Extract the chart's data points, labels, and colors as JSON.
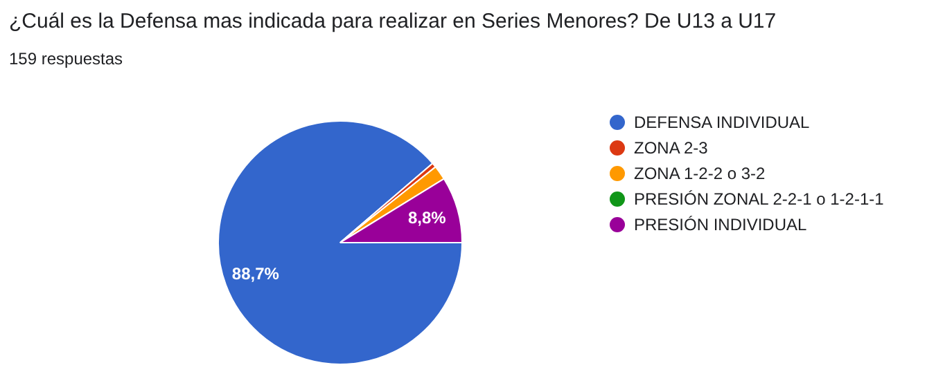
{
  "chart_data": {
    "type": "pie",
    "title": "¿Cuál es la Defensa mas indicada para realizar en Series Menores? De U13 a U17",
    "subtitle": "159 respuestas",
    "categories": [
      "DEFENSA INDIVIDUAL",
      "ZONA 2-3",
      "ZONA 1-2-2 o 3-2",
      "PRESIÓN ZONAL 2-2-1 o 1-2-1-1",
      "PRESIÓN INDIVIDUAL"
    ],
    "values": [
      88.7,
      0.6,
      1.9,
      0,
      8.8
    ],
    "colors": [
      "#3366cc",
      "#dc3912",
      "#ff9900",
      "#109618",
      "#990099"
    ],
    "value_labels": [
      "88,7%",
      null,
      null,
      null,
      "8,8%"
    ],
    "legend": "right"
  }
}
